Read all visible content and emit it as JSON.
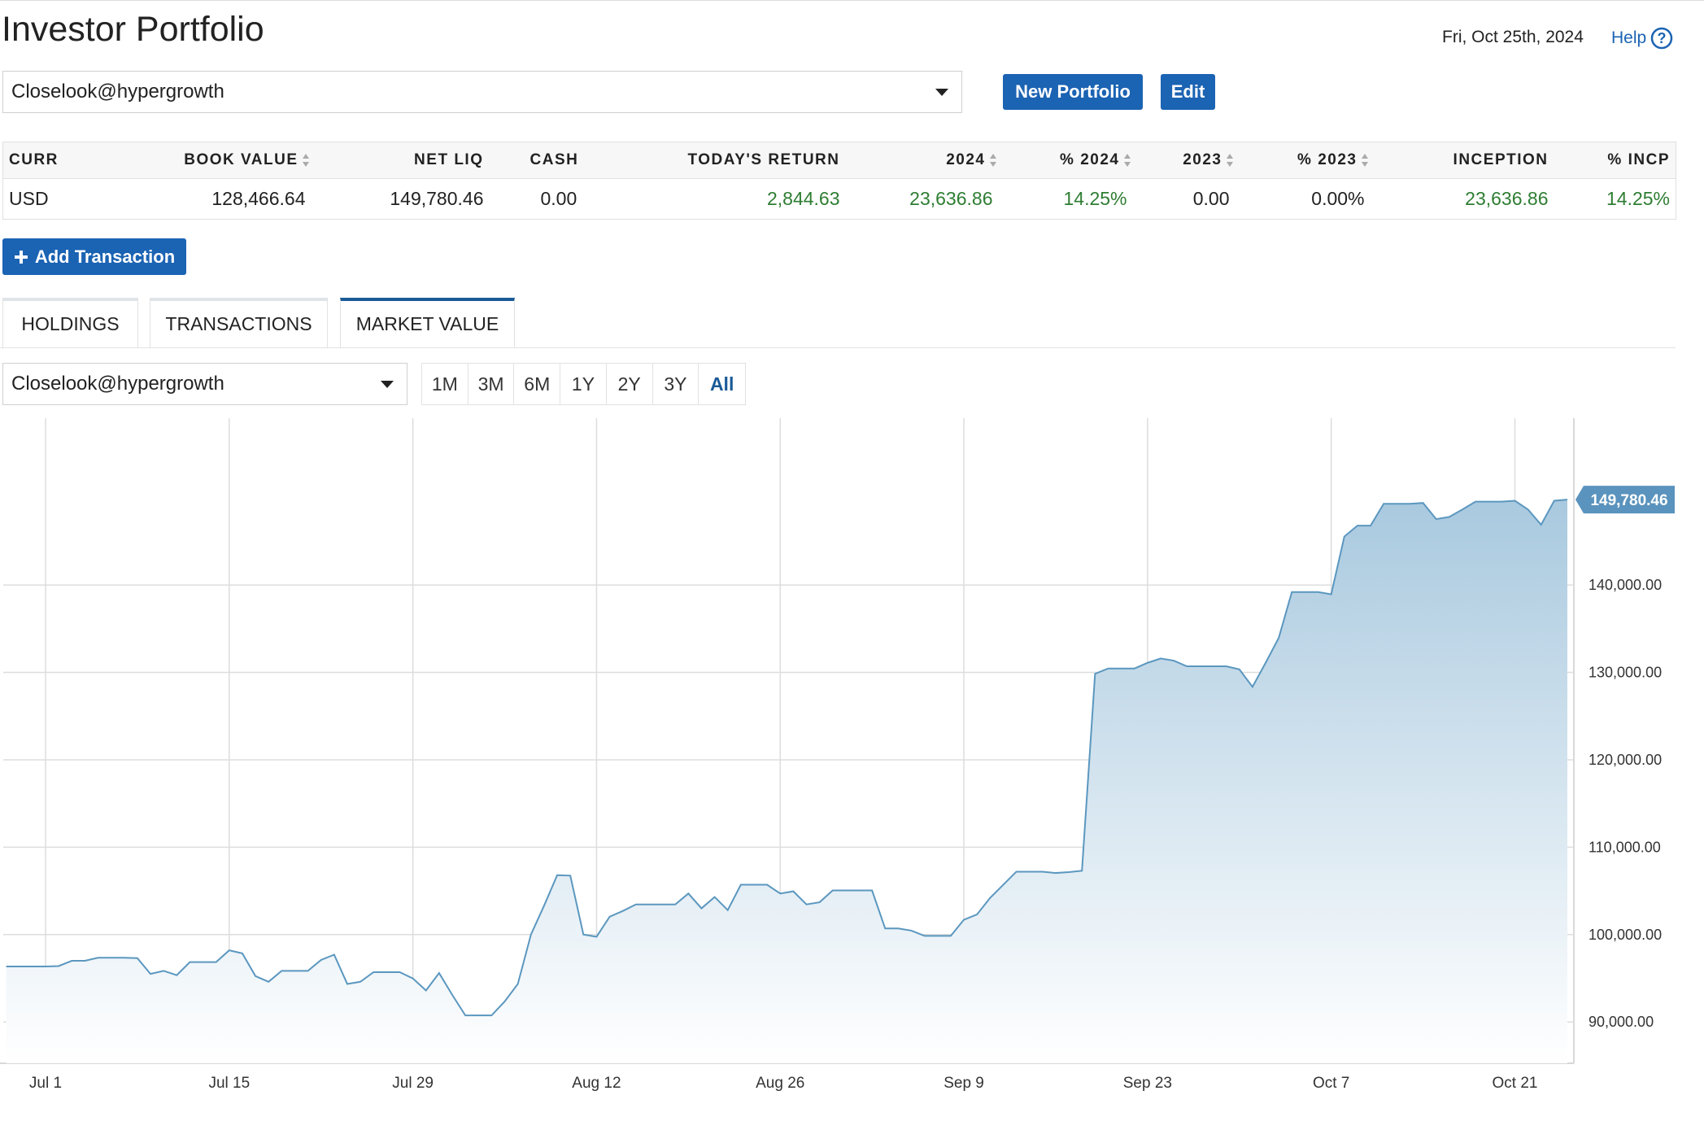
{
  "header": {
    "title": "Investor Portfolio",
    "date": "Fri, Oct 25th, 2024",
    "help": "Help"
  },
  "portfolio_select": "Closelook@hypergrowth",
  "buttons": [
    "New Portfolio",
    "Edit"
  ],
  "table": {
    "columns": [
      "CURR",
      "BOOK VALUE",
      "NET LIQ",
      "CASH",
      "TODAY'S RETURN",
      "2024",
      "% 2024",
      "2023",
      "% 2023",
      "INCEPTION",
      "% INCP"
    ],
    "sortable": [
      false,
      true,
      false,
      false,
      false,
      true,
      true,
      true,
      true,
      false,
      false
    ],
    "value_colors": [
      "#222222",
      "#222222",
      "#222222",
      "#222222",
      "#2e7d32",
      "#2e7d32",
      "#2e7d32",
      "#222222",
      "#222222",
      "#2e7d32",
      "#2e7d32"
    ],
    "rows": [
      [
        "USD",
        "128,466.64",
        "149,780.46",
        "0.00",
        "2,844.63",
        "23,636.86",
        "14.25%",
        "0.00",
        "0.00%",
        "23,636.86",
        "14.25%"
      ]
    ]
  },
  "add_transaction": "Add Transaction",
  "tabs": [
    "HOLDINGS",
    "TRANSACTIONS",
    "MARKET VALUE"
  ],
  "active_tab": 2,
  "chart_select": "Closelook@hypergrowth",
  "ranges": [
    "1M",
    "3M",
    "6M",
    "1Y",
    "2Y",
    "3Y",
    "All"
  ],
  "active_range": 6,
  "chart_data": {
    "type": "area",
    "color": "#5b97bf",
    "grid": true,
    "categories": [
      null,
      null,
      null,
      "Jul 1",
      null,
      null,
      null,
      null,
      null,
      null,
      null,
      null,
      null,
      null,
      null,
      null,
      null,
      "Jul 15",
      null,
      null,
      null,
      null,
      null,
      null,
      null,
      null,
      null,
      null,
      null,
      null,
      null,
      "Jul 29",
      null,
      null,
      null,
      null,
      null,
      null,
      null,
      null,
      null,
      null,
      null,
      null,
      null,
      "Aug 12",
      null,
      null,
      null,
      null,
      null,
      null,
      null,
      null,
      null,
      null,
      null,
      null,
      null,
      "Aug 26",
      null,
      null,
      null,
      null,
      null,
      null,
      null,
      null,
      null,
      null,
      null,
      null,
      null,
      "Sep 9",
      null,
      null,
      null,
      null,
      null,
      null,
      null,
      null,
      null,
      null,
      null,
      null,
      null,
      "Sep 23",
      null,
      null,
      null,
      null,
      null,
      null,
      null,
      null,
      null,
      null,
      null,
      null,
      null,
      "Oct 7",
      null,
      null,
      null,
      null,
      null,
      null,
      null,
      null,
      null,
      null,
      null,
      null,
      null,
      "Oct 21",
      null,
      null,
      null,
      null
    ],
    "values": [
      96350,
      96350,
      96350,
      96350,
      96400,
      97000,
      97000,
      97350,
      97350,
      97350,
      97300,
      95500,
      95850,
      95350,
      96850,
      96850,
      96850,
      98200,
      97850,
      95250,
      94600,
      95850,
      95850,
      95850,
      97100,
      97700,
      94350,
      94600,
      95700,
      95700,
      95700,
      94980,
      93600,
      95600,
      93100,
      90750,
      90750,
      90750,
      92350,
      94350,
      100000,
      103300,
      106800,
      106750,
      100000,
      99750,
      102050,
      102700,
      103450,
      103450,
      103450,
      103450,
      104700,
      103000,
      104300,
      102800,
      105700,
      105700,
      105700,
      104700,
      104950,
      103450,
      103700,
      105050,
      105050,
      105050,
      105050,
      100700,
      100700,
      100450,
      99850,
      99850,
      99850,
      101700,
      102300,
      104200,
      105700,
      107200,
      107200,
      107200,
      107050,
      107150,
      107300,
      129850,
      130450,
      130450,
      130450,
      131100,
      131600,
      131350,
      130700,
      130700,
      130700,
      130700,
      130350,
      128350,
      131100,
      133950,
      139200,
      139200,
      139200,
      138950,
      145550,
      146800,
      146800,
      149300,
      149300,
      149300,
      149400,
      147550,
      147800,
      148650,
      149550,
      149550,
      149550,
      149650,
      148650,
      146900,
      149650,
      149780.46
    ],
    "value_labels": [
      null,
      null,
      null,
      null,
      null,
      null,
      null,
      null,
      null,
      null,
      null,
      null,
      null,
      null,
      null,
      null,
      null,
      null,
      null,
      null,
      null,
      null,
      null,
      null,
      null,
      null,
      null,
      null,
      null,
      null,
      null,
      null,
      null,
      null,
      null,
      null,
      null,
      null,
      null,
      null,
      null,
      null,
      null,
      null,
      null,
      null,
      null,
      null,
      null,
      null,
      null,
      null,
      null,
      null,
      null,
      null,
      null,
      null,
      null,
      null,
      null,
      null,
      null,
      null,
      null,
      null,
      null,
      null,
      null,
      null,
      null,
      null,
      null,
      null,
      null,
      null,
      null,
      null,
      null,
      null,
      null,
      null,
      null,
      null,
      null,
      null,
      null,
      null,
      null,
      null,
      null,
      null,
      null,
      null,
      null,
      null,
      null,
      null,
      null,
      null,
      null,
      null,
      null,
      null,
      null,
      null,
      null,
      null,
      null,
      null,
      null,
      null,
      null,
      null,
      null,
      null,
      null,
      null,
      null,
      "149,780.46"
    ],
    "ylim": [
      85270,
      159100
    ],
    "yticks": [
      {
        "value": 90000,
        "label": "90,000.00"
      },
      {
        "value": 100000,
        "label": "100,000.00"
      },
      {
        "value": 110000,
        "label": "110,000.00"
      },
      {
        "value": 120000,
        "label": "120,000.00"
      },
      {
        "value": 130000,
        "label": "130,000.00"
      },
      {
        "value": 140000,
        "label": "140,000.00"
      }
    ]
  }
}
